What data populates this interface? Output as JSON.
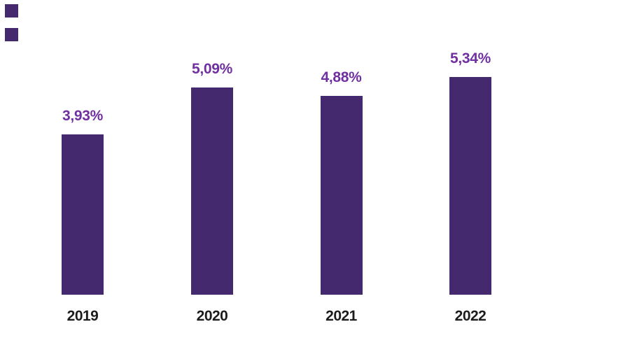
{
  "chart_data": {
    "type": "bar",
    "title": "",
    "xlabel": "",
    "ylabel": "",
    "categories": [
      "2019",
      "2020",
      "2021",
      "2022"
    ],
    "values": [
      3.93,
      5.09,
      4.88,
      5.34
    ],
    "value_labels": [
      "3,93%",
      "5,09%",
      "4,88%",
      "5,34%"
    ],
    "value_format": "percent-comma-decimal",
    "ylim": [
      0,
      7.2
    ],
    "grid": false,
    "legend": false,
    "axis_lines": false,
    "background": "#ffffff",
    "bar_color": "#44296e",
    "value_label_color": "#7030a0",
    "category_label_color": "#1c1c1c"
  },
  "decorations": {
    "corner_bullets": {
      "count": 2,
      "color": "#44296e"
    }
  }
}
